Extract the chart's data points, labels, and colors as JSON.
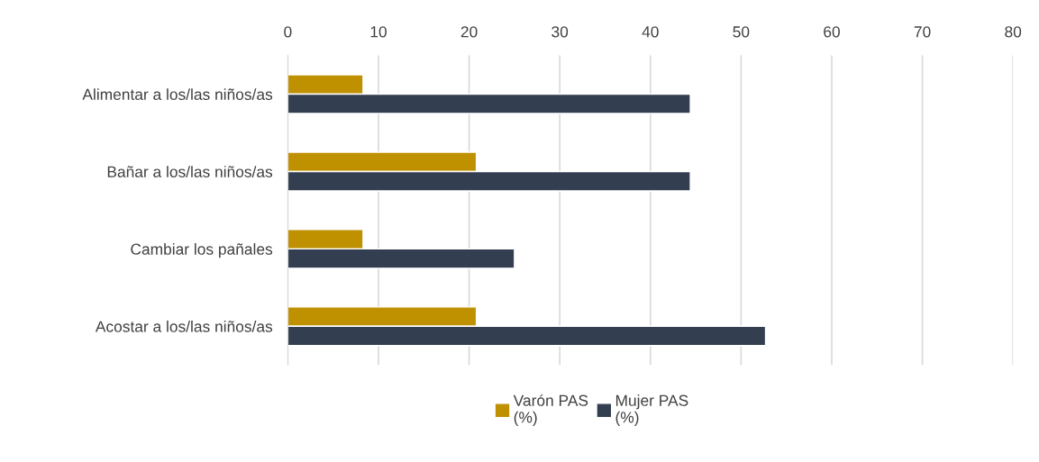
{
  "chart_data": {
    "type": "bar",
    "orientation": "horizontal",
    "categories": [
      "Alimentar a los/las niños/as",
      "Bañar a los/las niños/as",
      "Cambiar los pañales",
      "Acostar a los/las niños/as"
    ],
    "series": [
      {
        "name": "Varón PAS\n(%)",
        "color": "#bf9000",
        "values": [
          8.3,
          20.8,
          8.3,
          20.8
        ]
      },
      {
        "name": "Mujer PAS\n(%)",
        "color": "#333f50",
        "values": [
          44.4,
          44.4,
          25.0,
          52.7
        ]
      }
    ],
    "xlim": [
      0,
      80
    ],
    "xticks": [
      0,
      10,
      20,
      30,
      40,
      50,
      60,
      70,
      80
    ],
    "grid": "x",
    "legend": "bottom"
  }
}
